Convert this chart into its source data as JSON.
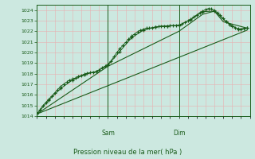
{
  "xlabel": "Pression niveau de la mer( hPa )",
  "ylim": [
    1014,
    1024.5
  ],
  "yticks": [
    1014,
    1015,
    1016,
    1017,
    1018,
    1019,
    1020,
    1021,
    1022,
    1023,
    1024
  ],
  "xlim": [
    0,
    72
  ],
  "x_sam": 24,
  "x_dim": 48,
  "bg_color": "#cce8e0",
  "grid_major_color": "#aad4cc",
  "grid_minor_color": "#bbddd6",
  "line_color": "#1a5c1a",
  "label_color": "#1a5c1a",
  "marker": "+",
  "series0": [
    0,
    1014.2,
    1,
    1014.6,
    2,
    1015.0,
    3,
    1015.3,
    4,
    1015.6,
    5,
    1015.9,
    6,
    1016.2,
    7,
    1016.5,
    8,
    1016.8,
    9,
    1017.0,
    10,
    1017.2,
    11,
    1017.4,
    12,
    1017.5,
    13,
    1017.6,
    14,
    1017.75,
    15,
    1017.85,
    16,
    1017.95,
    17,
    1018.05,
    18,
    1018.1,
    19,
    1018.15,
    20,
    1018.2,
    21,
    1018.35,
    22,
    1018.55,
    23,
    1018.7,
    24,
    1018.9,
    25,
    1019.2,
    26,
    1019.6,
    27,
    1020.0,
    28,
    1020.35,
    29,
    1020.65,
    30,
    1020.95,
    31,
    1021.25,
    32,
    1021.55,
    33,
    1021.75,
    34,
    1021.95,
    35,
    1022.1,
    36,
    1022.2,
    37,
    1022.3,
    38,
    1022.3,
    39,
    1022.35,
    40,
    1022.4,
    41,
    1022.45,
    42,
    1022.5,
    43,
    1022.5,
    44,
    1022.5,
    45,
    1022.55,
    46,
    1022.55,
    47,
    1022.55,
    48,
    1022.6,
    49,
    1022.7,
    50,
    1022.85,
    51,
    1023.0,
    52,
    1023.15,
    53,
    1023.35,
    54,
    1023.55,
    55,
    1023.75,
    56,
    1023.9,
    57,
    1024.05,
    58,
    1024.15,
    59,
    1024.1,
    60,
    1023.95,
    61,
    1023.75,
    62,
    1023.5,
    63,
    1023.2,
    64,
    1022.9,
    65,
    1022.65,
    66,
    1022.45,
    67,
    1022.35,
    68,
    1022.25,
    69,
    1022.2,
    70,
    1022.25,
    71,
    1022.3
  ],
  "series1": [
    0,
    1014.2,
    4,
    1015.5,
    8,
    1016.6,
    12,
    1017.4,
    16,
    1017.9,
    20,
    1018.2,
    24,
    1018.8,
    28,
    1020.1,
    32,
    1021.4,
    36,
    1022.1,
    40,
    1022.4,
    44,
    1022.5,
    48,
    1022.55,
    52,
    1023.1,
    56,
    1023.85,
    60,
    1023.9,
    64,
    1022.9,
    68,
    1022.2,
    71,
    1022.3
  ],
  "series2": [
    0,
    1014.2,
    71,
    1022.1
  ],
  "series3": [
    0,
    1014.2,
    24,
    1018.7,
    48,
    1022.0,
    56,
    1023.6,
    60,
    1023.9,
    63,
    1022.9,
    71,
    1022.3
  ]
}
